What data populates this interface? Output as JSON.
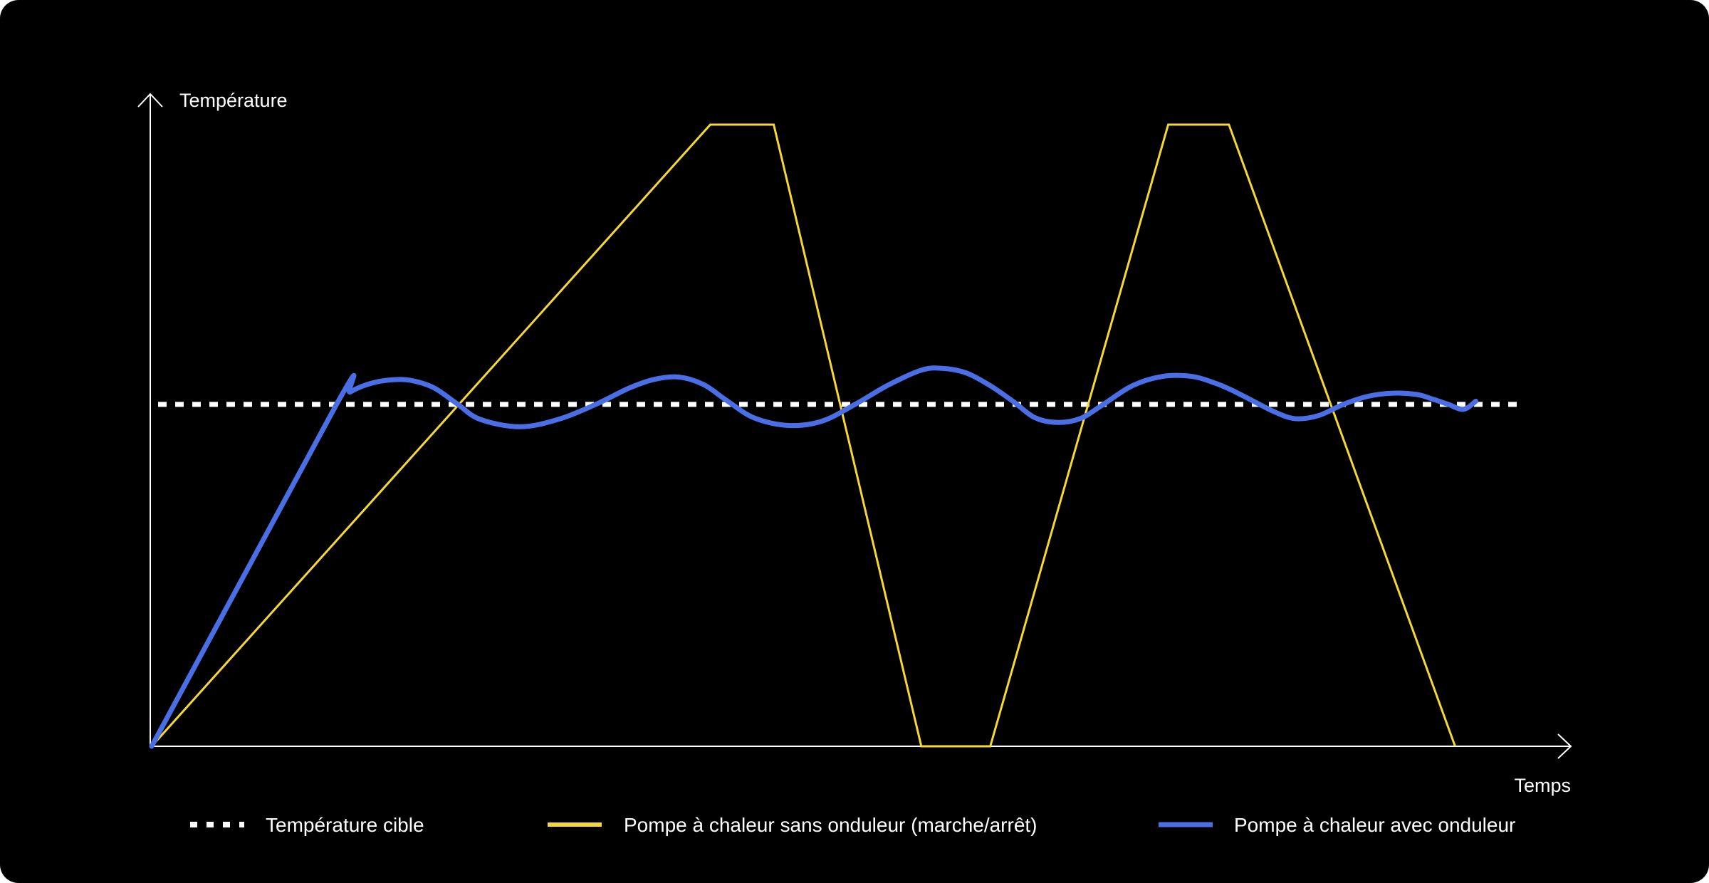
{
  "chart_data": {
    "type": "line",
    "ylabel": "Température",
    "xlabel": "Temps",
    "xlim": [
      0,
      100
    ],
    "ylim": [
      0,
      100
    ],
    "grid": false,
    "legend_placement": "bottom",
    "target": {
      "name": "Température cible",
      "value": 55,
      "color": "#ffffff",
      "style": "dashed"
    },
    "series": [
      {
        "name": "Pompe à chaleur sans onduleur (marche/arrêt)",
        "color": "#f5d735",
        "x": [
          0,
          40.5,
          45.1,
          55.8,
          60.8,
          73.7,
          78.1,
          94.5
        ],
        "y": [
          0,
          100,
          100,
          0,
          0,
          100,
          100,
          0
        ]
      },
      {
        "name": "Pompe à chaleur avec onduleur",
        "color": "#4a6ee6",
        "x": [
          0,
          13.4,
          14.4,
          16.1,
          18.0,
          19.3,
          20.6,
          22.2,
          23.8,
          26.7,
          29.5,
          32.2,
          34.6,
          36.4,
          38.2,
          40.0,
          41.7,
          43.7,
          46.2,
          48.6,
          51.0,
          53.4,
          55.8,
          57.3,
          59.0,
          60.8,
          62.5,
          64.0,
          65.6,
          67.3,
          69.0,
          71.1,
          73.3,
          75.4,
          77.0,
          78.3,
          79.8,
          81.4,
          82.9,
          84.6,
          86.4,
          88.2,
          90.0,
          91.7,
          92.8,
          94.0,
          95.1,
          96.0
        ],
        "y": [
          0,
          55,
          57,
          58.5,
          59,
          58.6,
          57.5,
          55,
          52.6,
          51.4,
          52.6,
          55,
          57.6,
          59,
          59.4,
          58.2,
          55.6,
          52.8,
          51.6,
          52.3,
          55,
          58.1,
          60.5,
          60.8,
          60.1,
          58,
          55.4,
          52.9,
          52.1,
          52.7,
          55,
          58,
          59.5,
          59.5,
          58.5,
          57.3,
          55.6,
          53.8,
          52.7,
          53.2,
          55,
          56.3,
          56.8,
          56.6,
          55.9,
          55,
          54.2,
          55.5
        ]
      }
    ]
  }
}
